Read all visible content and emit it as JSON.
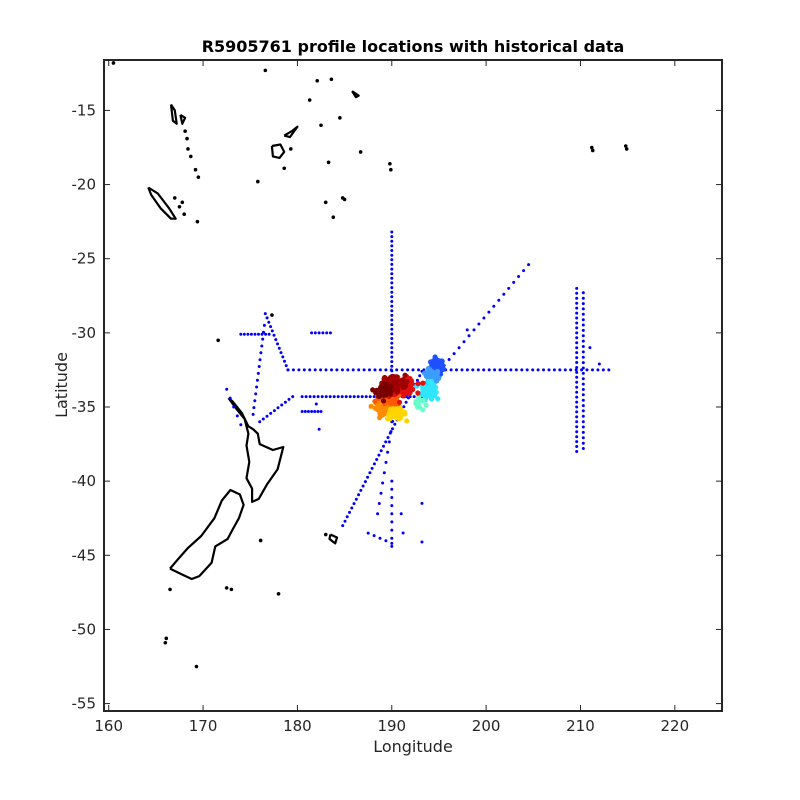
{
  "chart_data": {
    "type": "scatter",
    "title": "R5905761 profile locations with historical data",
    "xlabel": "Longitude",
    "ylabel": "Latitude",
    "xlim": [
      159.5,
      225
    ],
    "ylim": [
      -55.5,
      -11.6
    ],
    "xticks": [
      160,
      170,
      180,
      190,
      200,
      210,
      220
    ],
    "yticks": [
      -15,
      -20,
      -25,
      -30,
      -35,
      -40,
      -45,
      -50,
      -55
    ],
    "grid": false,
    "legend": "none",
    "series": [
      {
        "color": "#0000ff",
        "tracks": [
          {
            "x": [
              179,
              213
            ],
            "y": [
              -32.5,
              -32.5
            ],
            "n": 60
          },
          {
            "x": [
              190,
              190
            ],
            "y": [
              -23.2,
              -36
            ],
            "n": 42
          },
          {
            "x": [
              209.6,
              209.6
            ],
            "y": [
              -27,
              -38
            ],
            "n": 34
          },
          {
            "x": [
              210.3,
              210.3
            ],
            "y": [
              -27.3,
              -37.8
            ],
            "n": 30
          },
          {
            "x": [
              176.6,
              179
            ],
            "y": [
              -28.7,
              -32.5
            ],
            "n": 14
          },
          {
            "x": [
              176.5,
              175.3
            ],
            "y": [
              -29.5,
              -35.5
            ],
            "n": 14
          },
          {
            "x": [
              174,
              177
            ],
            "y": [
              -30.1,
              -30.1
            ],
            "n": 9
          },
          {
            "x": [
              176,
              179.5
            ],
            "y": [
              -36,
              -34.3
            ],
            "n": 10
          },
          {
            "x": [
              180.5,
              194.5
            ],
            "y": [
              -34.3,
              -34.3
            ],
            "n": 34
          },
          {
            "x": [
              180.5,
              182.5
            ],
            "y": [
              -35.3,
              -35.3
            ],
            "n": 7
          },
          {
            "x": [
              181.5,
              183.5
            ],
            "y": [
              -30,
              -30
            ],
            "n": 6
          },
          {
            "x": [
              184.8,
              193.2
            ],
            "y": [
              -43,
              -32.6
            ],
            "n": 36
          },
          {
            "x": [
              188.5,
              190.8
            ],
            "y": [
              -42.2,
              -33.2
            ],
            "n": 14
          },
          {
            "x": [
              187.5,
              190
            ],
            "y": [
              -43.5,
              -44.2
            ],
            "n": 5
          },
          {
            "x": [
              190,
              190
            ],
            "y": [
              -40,
              -44.4
            ],
            "n": 9
          },
          {
            "x": [
              194.5,
              204.5
            ],
            "y": [
              -33,
              -25.4
            ],
            "n": 20
          },
          {
            "x": [
              172.5,
              174
            ],
            "y": [
              -33.8,
              -36.2
            ],
            "n": 5
          }
        ],
        "points": [
          [
            182,
            -34.8
          ],
          [
            182.3,
            -36.5
          ],
          [
            193.2,
            -41.5
          ],
          [
            193.2,
            -44.1
          ],
          [
            191,
            -42.2
          ],
          [
            191.2,
            -43.5
          ],
          [
            212,
            -32.1
          ],
          [
            211,
            -31
          ],
          [
            198,
            -29.8
          ]
        ]
      },
      {
        "name": "profile locations",
        "colorscale": "jet",
        "clusters": [
          {
            "x": 194.8,
            "y": -32.3,
            "sx": 0.55,
            "sy": 0.45,
            "color": "#1e50ff",
            "n": 90
          },
          {
            "x": 194.3,
            "y": -33.0,
            "sx": 0.6,
            "sy": 0.45,
            "color": "#3c9cff",
            "n": 60
          },
          {
            "x": 193.9,
            "y": -33.9,
            "sx": 0.6,
            "sy": 0.45,
            "color": "#2ee6ff",
            "n": 70
          },
          {
            "x": 192.8,
            "y": -34.8,
            "sx": 0.5,
            "sy": 0.4,
            "color": "#66ffcc",
            "n": 15
          },
          {
            "x": 189.2,
            "y": -35.0,
            "sx": 0.8,
            "sy": 0.35,
            "color": "#ff8c00",
            "n": 60
          },
          {
            "x": 190.5,
            "y": -35.4,
            "sx": 0.8,
            "sy": 0.35,
            "color": "#ffd400",
            "n": 60
          },
          {
            "x": 189.8,
            "y": -34.4,
            "sx": 1.0,
            "sy": 0.4,
            "color": "#ff5a00",
            "n": 80
          },
          {
            "x": 191.2,
            "y": -33.6,
            "sx": 1.1,
            "sy": 0.45,
            "color": "#e01010",
            "n": 110
          },
          {
            "x": 190.2,
            "y": -33.4,
            "sx": 1.0,
            "sy": 0.45,
            "color": "#a00000",
            "n": 100
          },
          {
            "x": 189.2,
            "y": -33.9,
            "sx": 0.7,
            "sy": 0.4,
            "color": "#7a0000",
            "n": 50
          }
        ]
      }
    ],
    "coastlines": [
      {
        "type": "line",
        "points": [
          [
            166.5,
            -45.9
          ],
          [
            167.3,
            -45.3
          ],
          [
            168.4,
            -44.5
          ],
          [
            169.8,
            -43.7
          ],
          [
            171.2,
            -42.5
          ],
          [
            172.0,
            -41.3
          ],
          [
            172.9,
            -40.6
          ],
          [
            173.9,
            -40.9
          ],
          [
            174.3,
            -41.6
          ],
          [
            173.8,
            -42.5
          ],
          [
            173.1,
            -43.3
          ],
          [
            172.6,
            -43.9
          ],
          [
            171.3,
            -44.4
          ],
          [
            170.9,
            -45.5
          ],
          [
            169.6,
            -46.4
          ],
          [
            168.8,
            -46.6
          ],
          [
            167.8,
            -46.3
          ],
          [
            166.5,
            -45.9
          ]
        ]
      },
      {
        "type": "line",
        "points": [
          [
            172.7,
            -34.4
          ],
          [
            173.5,
            -35.1
          ],
          [
            174.4,
            -35.8
          ],
          [
            174.8,
            -36.8
          ],
          [
            174.6,
            -37.6
          ],
          [
            174.9,
            -38.7
          ],
          [
            174.6,
            -39.8
          ],
          [
            175.2,
            -40.5
          ],
          [
            175.2,
            -41.4
          ],
          [
            175.9,
            -41.2
          ],
          [
            176.8,
            -40.2
          ],
          [
            177.9,
            -39.2
          ],
          [
            178.5,
            -37.7
          ],
          [
            177.4,
            -37.9
          ],
          [
            176.0,
            -37.5
          ],
          [
            175.8,
            -36.8
          ],
          [
            175.3,
            -36.5
          ],
          [
            174.8,
            -36.3
          ],
          [
            174.1,
            -35.4
          ],
          [
            173.1,
            -34.6
          ],
          [
            172.7,
            -34.4
          ]
        ]
      },
      {
        "type": "line",
        "points": [
          [
            164.2,
            -20.2
          ],
          [
            165.2,
            -20.6
          ],
          [
            166.4,
            -21.6
          ],
          [
            167.1,
            -22.3
          ],
          [
            166.6,
            -22.3
          ],
          [
            165.5,
            -21.6
          ],
          [
            164.5,
            -20.7
          ],
          [
            164.2,
            -20.2
          ]
        ]
      },
      {
        "type": "line",
        "points": [
          [
            177.3,
            -17.4
          ],
          [
            178.2,
            -17.3
          ],
          [
            178.6,
            -17.8
          ],
          [
            178.1,
            -18.2
          ],
          [
            177.4,
            -18.1
          ],
          [
            177.3,
            -17.4
          ]
        ]
      },
      {
        "type": "line",
        "points": [
          [
            178.6,
            -16.7
          ],
          [
            179.4,
            -16.4
          ],
          [
            180.0,
            -16.1
          ],
          [
            179.2,
            -16.8
          ],
          [
            178.6,
            -16.7
          ]
        ]
      },
      {
        "type": "line",
        "points": [
          [
            166.6,
            -14.6
          ],
          [
            167.0,
            -15.0
          ],
          [
            167.2,
            -15.9
          ],
          [
            166.8,
            -15.7
          ],
          [
            166.6,
            -14.6
          ]
        ]
      },
      {
        "type": "line",
        "points": [
          [
            167.6,
            -15.3
          ],
          [
            168.1,
            -15.5
          ],
          [
            167.8,
            -15.9
          ],
          [
            167.6,
            -15.3
          ]
        ]
      },
      {
        "type": "line",
        "points": [
          [
            183.5,
            -43.6
          ],
          [
            184.2,
            -43.8
          ],
          [
            184.0,
            -44.2
          ],
          [
            183.4,
            -43.9
          ],
          [
            183.5,
            -43.6
          ]
        ]
      },
      {
        "type": "line",
        "points": [
          [
            185.8,
            -13.7
          ],
          [
            186.5,
            -14.0
          ],
          [
            186.2,
            -14.1
          ],
          [
            185.8,
            -13.7
          ]
        ]
      },
      {
        "type": "dot",
        "points": [
          [
            160.5,
            -11.8
          ],
          [
            168.1,
            -16.4
          ],
          [
            168.3,
            -16.9
          ],
          [
            168.4,
            -17.6
          ],
          [
            168.7,
            -18.1
          ],
          [
            169.2,
            -19.0
          ],
          [
            169.5,
            -19.5
          ],
          [
            167.0,
            -20.9
          ],
          [
            167.5,
            -21.5
          ],
          [
            167.8,
            -21.2
          ],
          [
            168.0,
            -22.0
          ],
          [
            169.4,
            -22.5
          ],
          [
            176.6,
            -12.3
          ],
          [
            181.3,
            -14.3
          ],
          [
            182.1,
            -13.0
          ],
          [
            183.6,
            -12.9
          ],
          [
            184.5,
            -15.5
          ],
          [
            182.5,
            -16.0
          ],
          [
            186.7,
            -17.8
          ],
          [
            189.8,
            -18.6
          ],
          [
            189.9,
            -19.0
          ],
          [
            184.8,
            -20.9
          ],
          [
            185.0,
            -21.0
          ],
          [
            183.8,
            -22.2
          ],
          [
            178.6,
            -18.9
          ],
          [
            179.3,
            -17.6
          ],
          [
            169.3,
            -52.5
          ],
          [
            166.1,
            -50.6
          ],
          [
            166.0,
            -50.9
          ],
          [
            172.5,
            -47.2
          ],
          [
            173.0,
            -47.3
          ],
          [
            176.1,
            -44.0
          ],
          [
            171.6,
            -30.5
          ],
          [
            183.0,
            -21.2
          ],
          [
            183.3,
            -18.5
          ],
          [
            175.8,
            -19.8
          ],
          [
            166.5,
            -47.3
          ],
          [
            211.2,
            -17.5
          ],
          [
            211.3,
            -17.7
          ],
          [
            214.8,
            -17.4
          ],
          [
            214.9,
            -17.6
          ],
          [
            183.0,
            -43.6
          ],
          [
            178.0,
            -47.6
          ],
          [
            177.3,
            -28.8
          ]
        ]
      }
    ]
  }
}
